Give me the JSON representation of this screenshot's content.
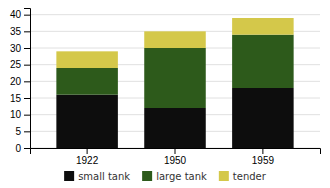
{
  "chart_data": {
    "type": "bar",
    "stacked": true,
    "categories": [
      "1922",
      "1950",
      "1959"
    ],
    "series": [
      {
        "name": "small tank",
        "color": "#0d0d0d",
        "values": [
          16,
          12,
          18
        ]
      },
      {
        "name": "large tank",
        "color": "#2d5a1b",
        "values": [
          8,
          18,
          16
        ]
      },
      {
        "name": "tender",
        "color": "#d4c84a",
        "values": [
          5,
          5,
          5
        ]
      }
    ],
    "ylim": [
      0,
      42
    ],
    "yticks": [
      0,
      5,
      10,
      15,
      20,
      25,
      30,
      35,
      40
    ],
    "grid": true,
    "legend": "bottom"
  }
}
